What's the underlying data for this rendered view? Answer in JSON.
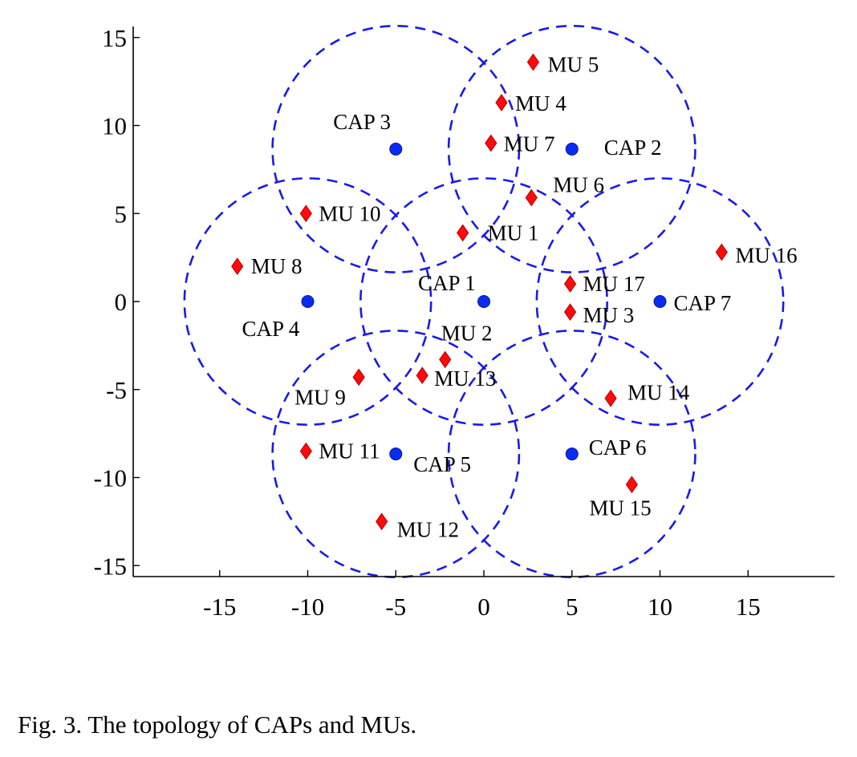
{
  "caption": "Fig. 3.  The topology of CAPs and MUs.",
  "chart_data": {
    "type": "scatter",
    "title": "",
    "xlabel": "",
    "ylabel": "",
    "xlim": [
      -20,
      20
    ],
    "ylim": [
      -15.5,
      15.5
    ],
    "xticks": [
      -15,
      -10,
      -5,
      0,
      5,
      10,
      15
    ],
    "yticks": [
      -15,
      -10,
      -5,
      0,
      5,
      10,
      15
    ],
    "xtick_labels": [
      "-15",
      "-10",
      "-5",
      "0",
      "5",
      "10",
      "15"
    ],
    "ytick_labels": [
      "-15",
      "-10",
      "-5",
      "0",
      "5",
      "10",
      "15"
    ],
    "grid": false,
    "coverage_radius": 7,
    "colors": {
      "cap": "#0a2cf0",
      "mu": "#ff0a0a",
      "circle": "#1a1ae6",
      "axis": "#000000"
    },
    "series": [
      {
        "marker": "circle",
        "points": [
          {
            "label": "CAP 1",
            "x": 0,
            "y": 0
          },
          {
            "label": "CAP 2",
            "x": 5,
            "y": 8.66
          },
          {
            "label": "CAP 3",
            "x": -5,
            "y": 8.66
          },
          {
            "label": "CAP 4",
            "x": -10,
            "y": 0
          },
          {
            "label": "CAP 5",
            "x": -5,
            "y": -8.66
          },
          {
            "label": "CAP 6",
            "x": 5,
            "y": -8.66
          },
          {
            "label": "CAP 7",
            "x": 10,
            "y": 0
          }
        ]
      },
      {
        "marker": "diamond",
        "points": [
          {
            "label": "MU 1",
            "x": -1.2,
            "y": 3.9
          },
          {
            "label": "MU 2",
            "x": -2.2,
            "y": -3.3
          },
          {
            "label": "MU 3",
            "x": 4.9,
            "y": -0.6
          },
          {
            "label": "MU 4",
            "x": 1.0,
            "y": 11.3
          },
          {
            "label": "MU 5",
            "x": 2.8,
            "y": 13.6
          },
          {
            "label": "MU 6",
            "x": 2.7,
            "y": 5.9
          },
          {
            "label": "MU 7",
            "x": 0.4,
            "y": 9.0
          },
          {
            "label": "MU 8",
            "x": -14.0,
            "y": 2.0
          },
          {
            "label": "MU 9",
            "x": -7.1,
            "y": -4.3
          },
          {
            "label": "MU 10",
            "x": -10.1,
            "y": 5.0
          },
          {
            "label": "MU 11",
            "x": -10.1,
            "y": -8.5
          },
          {
            "label": "MU 12",
            "x": -5.8,
            "y": -12.5
          },
          {
            "label": "MU 13",
            "x": -3.5,
            "y": -4.2
          },
          {
            "label": "MU 14",
            "x": 7.2,
            "y": -5.5
          },
          {
            "label": "MU 15",
            "x": 8.4,
            "y": -10.4
          },
          {
            "label": "MU 16",
            "x": 13.5,
            "y": 2.8
          },
          {
            "label": "MU 17",
            "x": 4.9,
            "y": 1.0
          }
        ]
      }
    ]
  }
}
